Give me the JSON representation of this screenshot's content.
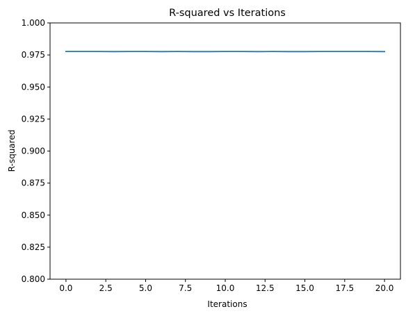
{
  "chart_data": {
    "type": "line",
    "title": "R-squared vs Iterations",
    "xlabel": "Iterations",
    "ylabel": "R-squared",
    "xlim": [
      -1,
      21
    ],
    "ylim": [
      0.8,
      1.0
    ],
    "xticks": [
      0,
      2.5,
      5,
      7.5,
      10,
      12.5,
      15,
      17.5,
      20
    ],
    "xtick_labels": [
      "0.0",
      "2.5",
      "5.0",
      "7.5",
      "10.0",
      "12.5",
      "15.0",
      "17.5",
      "20.0"
    ],
    "yticks": [
      0.8,
      0.825,
      0.85,
      0.875,
      0.9,
      0.925,
      0.95,
      0.975,
      1.0
    ],
    "ytick_labels": [
      "0.800",
      "0.825",
      "0.850",
      "0.875",
      "0.900",
      "0.925",
      "0.950",
      "0.975",
      "1.000"
    ],
    "grid": false,
    "series": [
      {
        "color": "#1f77b4",
        "x": [
          0,
          1,
          2,
          3,
          4,
          5,
          6,
          7,
          8,
          9,
          10,
          11,
          12,
          13,
          14,
          15,
          16,
          17,
          18,
          19,
          20
        ],
        "y": [
          0.9777,
          0.9777,
          0.9777,
          0.9776,
          0.9777,
          0.9777,
          0.9776,
          0.9777,
          0.9776,
          0.9776,
          0.9777,
          0.9777,
          0.9776,
          0.9777,
          0.9776,
          0.9776,
          0.9777,
          0.9777,
          0.9777,
          0.9777,
          0.9776
        ]
      }
    ]
  }
}
